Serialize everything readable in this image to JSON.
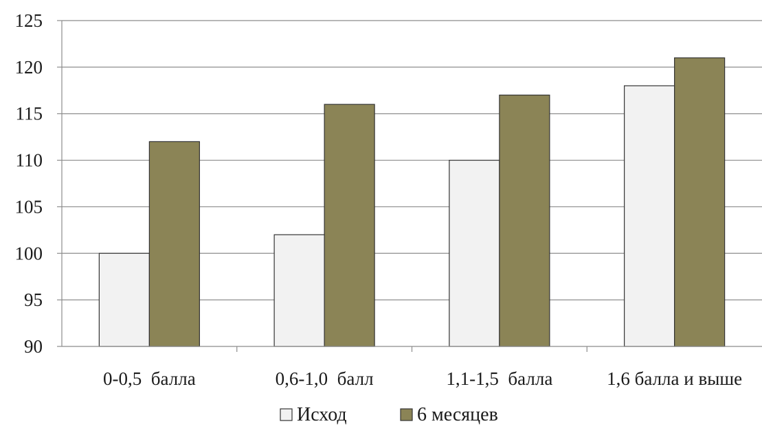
{
  "chart_data": {
    "type": "bar",
    "categories": [
      "0-0,5  балла",
      "0,6-1,0  балл",
      "1,1-1,5  балла",
      "1,6 балла и выше"
    ],
    "series": [
      {
        "name": "Исход",
        "values": [
          100,
          102,
          110,
          118
        ],
        "color": "#f2f2f2"
      },
      {
        "name": "6 месяцев",
        "values": [
          112,
          116,
          117,
          121
        ],
        "color": "#8b8456"
      }
    ],
    "ylim": [
      90,
      125
    ],
    "yticks": [
      90,
      95,
      100,
      105,
      110,
      115,
      120,
      125
    ],
    "grid": true,
    "legend": "bottom",
    "title": "",
    "xlabel": "",
    "ylabel": ""
  }
}
